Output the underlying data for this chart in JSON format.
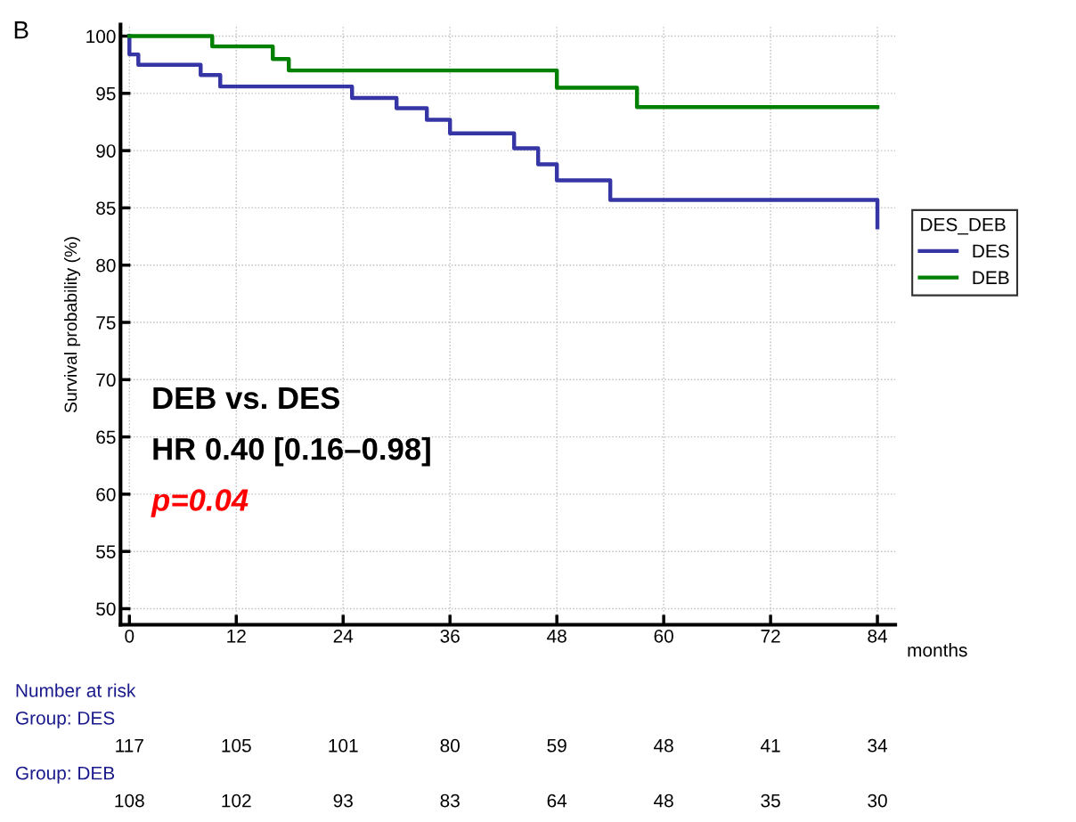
{
  "chart_data": {
    "type": "step",
    "title": "B",
    "xlabel": "months",
    "ylabel": "Survival probability (%)",
    "legend_title": "DES_DEB",
    "legend": "right",
    "grid": true,
    "xlim": [
      -1,
      86
    ],
    "xticks": [
      0,
      12,
      24,
      36,
      48,
      60,
      72,
      84
    ],
    "ylim": [
      48.6,
      101
    ],
    "yticks": [
      50,
      55,
      60,
      65,
      70,
      75,
      80,
      85,
      90,
      95,
      100
    ],
    "series": [
      {
        "name": "DES",
        "color": "#3535a5",
        "x": [
          0,
          0,
          1,
          8,
          10.2,
          25,
          30,
          33.4,
          36,
          43.2,
          45.9,
          48,
          54,
          84,
          84
        ],
        "values": [
          100,
          98.4,
          97.5,
          96.6,
          95.6,
          94.6,
          93.7,
          92.7,
          91.5,
          90.2,
          88.8,
          87.4,
          85.7,
          85.7,
          83.3
        ]
      },
      {
        "name": "DEB",
        "color": "#008000",
        "x": [
          0,
          9.3,
          16.1,
          17.9,
          48,
          57,
          84
        ],
        "values": [
          100,
          99.1,
          98.0,
          97.0,
          95.5,
          93.8,
          93.8
        ]
      }
    ],
    "annotations": [
      "DEB vs. DES",
      "HR 0.40 [0.16–0.98]",
      "p=0.04",
      "Number at risk",
      "Group: DES",
      "117",
      "105",
      "101",
      "80",
      "59",
      "48",
      "41",
      "34",
      "Group: DEB",
      "108",
      "102",
      "93",
      "83",
      "64",
      "48",
      "35",
      "30"
    ]
  }
}
